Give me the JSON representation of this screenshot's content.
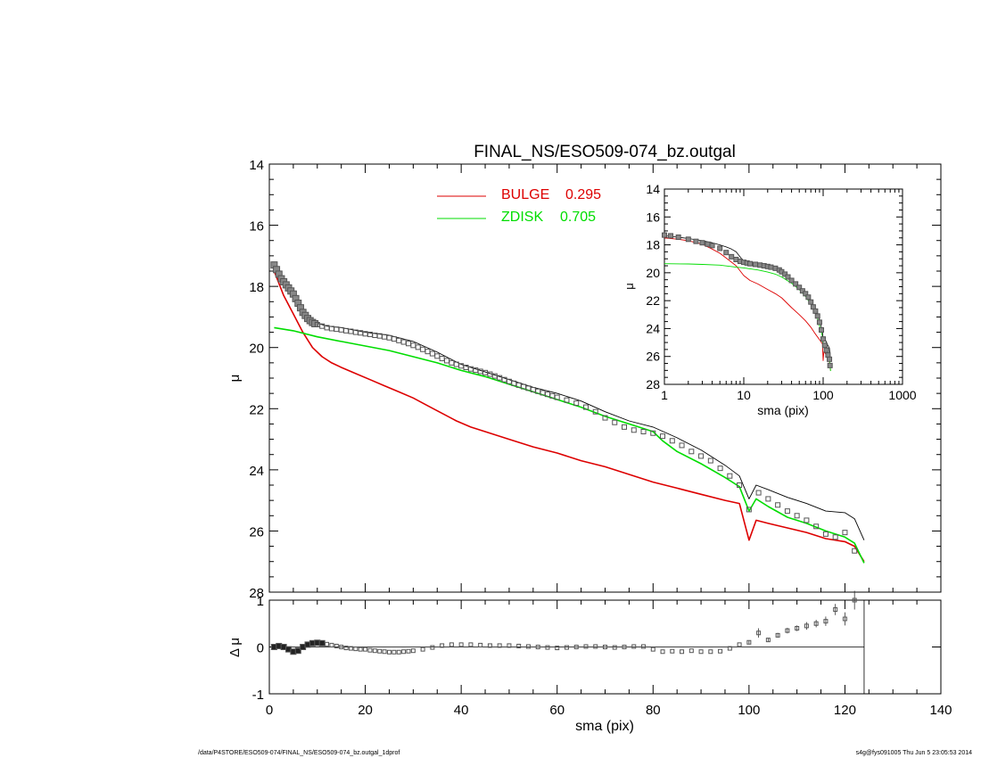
{
  "footer": {
    "path": "/data/P4STORE/ESO509-074/FINAL_NS/ESO509-074_bz.outgal_1dprof",
    "stamp": "s4g@fys091005  Thu Jun  5 23:05:53 2014"
  },
  "colors": {
    "bulge": "#dd0000",
    "disk": "#00dd00",
    "model": "#000000",
    "data": "#555555"
  },
  "chart_data": [
    {
      "type": "line",
      "title": "FINAL_NS/ESO509-074_bz.outgal",
      "xlabel": "",
      "ylabel": "μ",
      "xlim": [
        0,
        140
      ],
      "ylim": [
        28,
        14
      ],
      "y_inverted": true,
      "yticks": [
        14,
        16,
        18,
        20,
        22,
        24,
        26,
        28
      ],
      "legend": [
        {
          "name": "BULGE",
          "fraction": "0.295"
        },
        {
          "name": "ZDISK",
          "fraction": "0.705"
        }
      ],
      "series": [
        {
          "name": "BULGE",
          "x": [
            1,
            3,
            5,
            7,
            9,
            11,
            13,
            15,
            18,
            21,
            24,
            27,
            30,
            33,
            36,
            39,
            42,
            45,
            50,
            55,
            60,
            65,
            70,
            75,
            80,
            85,
            90,
            95,
            98,
            100,
            101.5,
            104,
            108,
            112,
            116,
            120,
            122,
            124
          ],
          "y": [
            17.5,
            18.3,
            18.9,
            19.5,
            20.0,
            20.3,
            20.5,
            20.65,
            20.85,
            21.05,
            21.25,
            21.45,
            21.65,
            21.9,
            22.15,
            22.4,
            22.6,
            22.75,
            23.0,
            23.25,
            23.45,
            23.7,
            23.9,
            24.15,
            24.4,
            24.6,
            24.8,
            25.0,
            25.1,
            26.3,
            25.65,
            25.75,
            25.9,
            26.05,
            26.25,
            26.35,
            26.5,
            27.0
          ]
        },
        {
          "x": [
            1,
            5,
            10,
            15,
            20,
            25,
            30,
            35,
            40,
            45,
            50,
            55,
            60,
            65,
            70,
            75,
            80,
            82,
            85,
            90,
            95,
            98,
            100,
            101.5,
            104,
            108,
            112,
            116,
            120,
            122,
            124
          ],
          "y": [
            19.35,
            19.45,
            19.65,
            19.8,
            19.95,
            20.1,
            20.3,
            20.5,
            20.75,
            20.95,
            21.2,
            21.45,
            21.7,
            21.95,
            22.25,
            22.5,
            22.75,
            23.05,
            23.4,
            23.8,
            24.25,
            24.55,
            25.35,
            24.95,
            25.2,
            25.55,
            25.75,
            26.0,
            26.2,
            26.4,
            27.05
          ]
        },
        {
          "x": [
            1,
            2,
            3,
            4,
            5,
            6,
            7,
            8,
            9,
            10,
            12,
            15,
            20,
            25,
            30,
            35,
            40,
            45,
            50,
            55,
            60,
            65,
            70,
            75,
            80,
            85,
            90,
            95,
            98,
            100,
            101.5,
            104,
            108,
            112,
            116,
            120,
            122,
            124
          ],
          "y": [
            17.35,
            17.6,
            17.85,
            18.05,
            18.25,
            18.5,
            18.75,
            18.95,
            19.1,
            19.2,
            19.3,
            19.35,
            19.5,
            19.6,
            19.8,
            20.15,
            20.55,
            20.8,
            21.05,
            21.3,
            21.5,
            21.75,
            22.1,
            22.4,
            22.6,
            22.95,
            23.35,
            23.85,
            24.2,
            24.95,
            24.5,
            24.65,
            24.9,
            25.1,
            25.35,
            25.4,
            25.6,
            26.3
          ]
        },
        {
          "x": [
            1,
            1.5,
            2,
            2.5,
            3,
            3.5,
            4,
            4.5,
            5,
            5.5,
            6,
            6.5,
            7,
            7.5,
            8,
            8.5,
            9,
            9.5,
            10,
            11,
            12,
            13,
            14,
            15,
            16,
            17,
            18,
            19,
            20,
            21,
            22,
            23,
            24,
            25,
            26,
            27,
            28,
            29,
            30,
            31,
            32,
            33,
            34,
            35,
            36,
            37,
            38,
            39,
            40,
            41,
            42,
            43,
            44,
            45,
            46,
            47,
            48,
            49,
            50,
            51,
            52,
            53,
            54,
            55,
            56,
            57,
            58,
            59,
            60,
            62,
            64,
            66,
            68,
            70,
            72,
            74,
            76,
            78,
            80,
            82,
            84,
            86,
            88,
            90,
            92,
            94,
            96,
            98,
            100,
            102,
            104,
            106,
            108,
            110,
            112,
            114,
            116,
            118,
            120,
            122
          ],
          "y": [
            17.3,
            17.45,
            17.6,
            17.75,
            17.85,
            17.95,
            18.05,
            18.15,
            18.25,
            18.4,
            18.55,
            18.7,
            18.85,
            18.95,
            19.05,
            19.12,
            19.18,
            19.22,
            19.25,
            19.3,
            19.35,
            19.38,
            19.4,
            19.42,
            19.45,
            19.47,
            19.5,
            19.52,
            19.55,
            19.57,
            19.6,
            19.62,
            19.65,
            19.68,
            19.72,
            19.77,
            19.82,
            19.87,
            19.93,
            19.99,
            20.06,
            20.13,
            20.2,
            20.28,
            20.36,
            20.43,
            20.5,
            20.55,
            20.6,
            20.65,
            20.7,
            20.74,
            20.78,
            20.82,
            20.87,
            20.93,
            20.99,
            21.05,
            21.11,
            21.17,
            21.23,
            21.28,
            21.33,
            21.38,
            21.43,
            21.48,
            21.53,
            21.58,
            21.63,
            21.72,
            21.82,
            21.95,
            22.1,
            22.3,
            22.45,
            22.6,
            22.7,
            22.75,
            22.8,
            22.9,
            23.05,
            23.2,
            23.4,
            23.55,
            23.7,
            23.95,
            24.2,
            24.5,
            25.3,
            24.75,
            24.95,
            25.15,
            25.35,
            25.5,
            25.65,
            25.85,
            26.1,
            26.2,
            26.05,
            26.65
          ]
        }
      ]
    },
    {
      "type": "line",
      "title": "",
      "xlabel": "sma (pix)",
      "ylabel": "Δ μ",
      "xlim": [
        0,
        140
      ],
      "ylim": [
        -1,
        1
      ],
      "xticks": [
        0,
        20,
        40,
        60,
        80,
        100,
        120,
        140
      ],
      "yticks": [
        -1,
        0,
        1
      ],
      "series": [
        {
          "x": [
            1,
            2,
            3,
            4,
            5,
            6,
            7,
            8,
            9,
            10,
            11,
            12,
            13,
            14,
            15,
            16,
            17,
            18,
            19,
            20,
            21,
            22,
            23,
            24,
            25,
            26,
            27,
            28,
            29,
            30,
            32,
            34,
            36,
            38,
            40,
            42,
            44,
            46,
            48,
            50,
            52,
            54,
            56,
            58,
            60,
            62,
            64,
            66,
            68,
            70,
            72,
            74,
            76,
            78,
            80,
            82,
            84,
            86,
            88,
            90,
            92,
            94,
            96,
            98,
            100,
            102,
            104,
            106,
            108,
            110,
            112,
            114,
            116,
            118,
            120,
            122
          ],
          "y": [
            0.0,
            0.02,
            0.0,
            -0.05,
            -0.1,
            -0.08,
            0.0,
            0.05,
            0.08,
            0.09,
            0.08,
            0.06,
            0.04,
            0.02,
            0.0,
            -0.02,
            -0.03,
            -0.04,
            -0.05,
            -0.05,
            -0.07,
            -0.08,
            -0.09,
            -0.1,
            -0.11,
            -0.11,
            -0.11,
            -0.1,
            -0.09,
            -0.08,
            -0.05,
            -0.01,
            0.03,
            0.05,
            0.05,
            0.05,
            0.04,
            0.03,
            0.03,
            0.03,
            0.02,
            0.01,
            0.0,
            -0.01,
            -0.02,
            -0.01,
            0.0,
            0.01,
            0.01,
            0.0,
            -0.01,
            0.0,
            0.01,
            0.01,
            -0.05,
            -0.1,
            -0.09,
            -0.1,
            -0.08,
            -0.1,
            -0.1,
            -0.09,
            -0.03,
            0.05,
            0.1,
            0.3,
            0.15,
            0.25,
            0.35,
            0.4,
            0.45,
            0.5,
            0.55,
            0.8,
            0.6,
            1.0
          ],
          "err": [
            0,
            0,
            0,
            0,
            0,
            0,
            0,
            0,
            0,
            0,
            0,
            0,
            0,
            0,
            0,
            0,
            0,
            0,
            0,
            0,
            0,
            0,
            0,
            0,
            0,
            0,
            0,
            0,
            0,
            0,
            0,
            0,
            0,
            0,
            0,
            0,
            0,
            0,
            0,
            0,
            0,
            0,
            0,
            0,
            0,
            0,
            0,
            0,
            0,
            0,
            0,
            0,
            0,
            0,
            0,
            0,
            0,
            0,
            0,
            0,
            0,
            0,
            0,
            0,
            0.03,
            0.1,
            0.04,
            0.05,
            0.06,
            0.06,
            0.08,
            0.08,
            0.1,
            0.12,
            0.14,
            0.2
          ]
        }
      ]
    },
    {
      "type": "line",
      "title": "",
      "xlabel": "sma (pix)",
      "ylabel": "μ",
      "xscale": "log",
      "xlim": [
        1,
        1000
      ],
      "ylim": [
        28,
        14
      ],
      "y_inverted": true,
      "xticks": [
        1,
        10,
        100,
        1000
      ],
      "yticks": [
        14,
        16,
        18,
        20,
        22,
        24,
        26,
        28
      ],
      "series": [
        {
          "x": [
            1,
            1.5,
            2,
            3,
            4,
            5,
            6,
            8,
            10,
            12,
            15,
            20,
            25,
            30,
            40,
            50,
            60,
            70,
            80,
            90,
            98,
            100,
            102,
            110,
            120,
            124
          ],
          "y": [
            17.5,
            17.6,
            17.7,
            17.95,
            18.3,
            18.6,
            18.95,
            19.5,
            20.2,
            20.55,
            20.8,
            21.2,
            21.5,
            21.8,
            22.5,
            23.0,
            23.45,
            23.9,
            24.4,
            24.8,
            25.1,
            26.3,
            25.65,
            25.9,
            26.3,
            27.0
          ]
        },
        {
          "x": [
            1,
            2,
            3,
            5,
            8,
            10,
            15,
            20,
            25,
            30,
            40,
            50,
            60,
            70,
            80,
            90,
            98,
            100,
            104,
            112,
            120,
            124
          ],
          "y": [
            19.35,
            19.37,
            19.4,
            19.45,
            19.6,
            19.65,
            19.8,
            19.95,
            20.1,
            20.3,
            20.75,
            21.2,
            21.7,
            22.25,
            22.75,
            23.8,
            24.55,
            25.35,
            25.2,
            25.75,
            26.2,
            27.05
          ]
        },
        {
          "x": [
            1,
            1.5,
            2,
            3,
            4,
            5,
            6,
            7,
            8,
            10,
            12,
            15,
            20,
            25,
            30,
            40,
            50,
            60,
            70,
            80,
            90,
            98,
            100,
            104,
            112,
            120,
            124
          ],
          "y": [
            17.35,
            17.45,
            17.55,
            17.7,
            17.85,
            18.0,
            18.15,
            18.3,
            18.5,
            19.2,
            19.3,
            19.35,
            19.5,
            19.6,
            19.8,
            20.55,
            21.05,
            21.5,
            22.1,
            22.6,
            23.35,
            24.2,
            24.95,
            24.65,
            25.1,
            25.4,
            26.3
          ]
        },
        {
          "x": [
            1,
            1.2,
            1.5,
            2,
            2.5,
            3,
            3.5,
            4,
            5,
            6,
            7,
            8,
            9,
            10,
            11,
            12,
            14,
            16,
            18,
            20,
            22,
            25,
            28,
            30,
            33,
            36,
            40,
            45,
            50,
            55,
            60,
            65,
            70,
            75,
            80,
            85,
            90,
            95,
            100,
            105,
            110,
            115,
            120,
            122
          ],
          "y": [
            17.3,
            17.35,
            17.45,
            17.6,
            17.75,
            17.85,
            17.95,
            18.05,
            18.25,
            18.55,
            18.85,
            19.05,
            19.18,
            19.25,
            19.3,
            19.35,
            19.4,
            19.45,
            19.5,
            19.55,
            19.6,
            19.68,
            19.8,
            19.93,
            20.1,
            20.3,
            20.55,
            20.8,
            21.05,
            21.3,
            21.5,
            21.75,
            22.1,
            22.45,
            22.75,
            23.1,
            23.55,
            24.1,
            24.75,
            25.2,
            25.55,
            25.9,
            26.2,
            26.65
          ]
        }
      ]
    }
  ]
}
